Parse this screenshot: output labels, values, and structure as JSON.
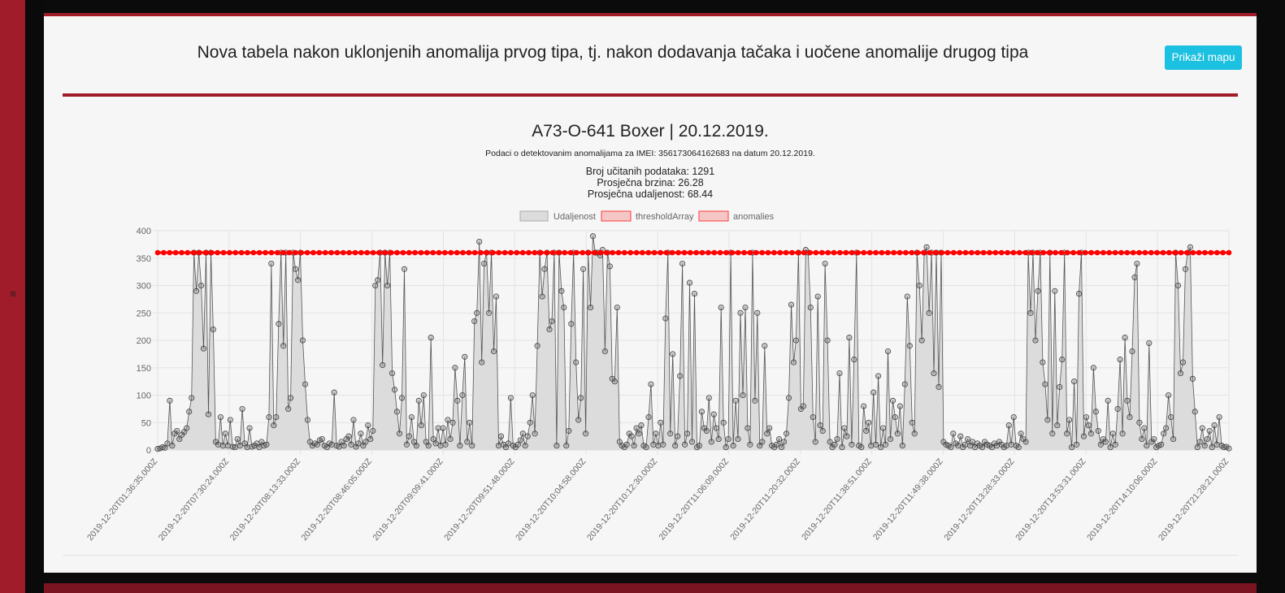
{
  "page": {
    "title": "Nova tabela nakon uklonjenih anomalija prvog tipa, tj. nakon dodavanja tačaka i uočene anomalije drugog tipa",
    "map_button": "Prikaži mapu"
  },
  "chart_data": {
    "type": "line",
    "title": "A73-O-641 Boxer | 20.12.2019.",
    "subtitle": "Podaci o detektovanim anomalijama za IMEI: 356173064162683 na datum 20.12.2019.",
    "stats": [
      "Broj učitanih podataka: 1291",
      "Prosječna brzina: 26.28",
      "Prosječna udaljenost: 68.44"
    ],
    "ylim": [
      0,
      400
    ],
    "y_ticks": [
      0,
      50,
      100,
      150,
      200,
      250,
      300,
      350,
      400
    ],
    "x_tick_labels": [
      "2019-12-20T01:36:35.000Z",
      "2019-12-20T07:30:24.000Z",
      "2019-12-20T08:13:33.000Z",
      "2019-12-20T08:46:05.000Z",
      "2019-12-20T09:09:41.000Z",
      "2019-12-20T09:51:48.000Z",
      "2019-12-20T10:04:58.000Z",
      "2019-12-20T10:12:30.000Z",
      "2019-12-20T11:06:09.000Z",
      "2019-12-20T11:20:32.000Z",
      "2019-12-20T11:38:51.000Z",
      "2019-12-20T11:49:38.000Z",
      "2019-12-20T13:28:33.000Z",
      "2019-12-20T13:53:31.000Z",
      "2019-12-20T14:10:06.000Z",
      "2019-12-20T21:28:21.000Z"
    ],
    "legend_position": "top",
    "grid": true,
    "series": [
      {
        "name": "Udaljenost",
        "color": "#555555",
        "fill": "#dcdcdc",
        "values": [
          2,
          3,
          5,
          4,
          12,
          90,
          8,
          30,
          35,
          20,
          28,
          33,
          40,
          70,
          95,
          360,
          290,
          360,
          300,
          185,
          360,
          65,
          360,
          220,
          15,
          10,
          60,
          8,
          30,
          8,
          55,
          6,
          5,
          20,
          8,
          75,
          12,
          5,
          40,
          6,
          8,
          12,
          5,
          15,
          8,
          10,
          60,
          340,
          45,
          60,
          230,
          360,
          190,
          360,
          75,
          95,
          360,
          330,
          310,
          360,
          200,
          120,
          55,
          15,
          8,
          12,
          10,
          18,
          20,
          8,
          5,
          12,
          10,
          105,
          8,
          6,
          15,
          8,
          20,
          25,
          10,
          55,
          6,
          12,
          30,
          8,
          15,
          45,
          20,
          35,
          300,
          310,
          360,
          155,
          360,
          300,
          360,
          140,
          110,
          70,
          30,
          95,
          330,
          10,
          25,
          60,
          15,
          8,
          90,
          45,
          100,
          15,
          8,
          205,
          20,
          12,
          40,
          8,
          40,
          10,
          55,
          20,
          50,
          150,
          90,
          8,
          100,
          170,
          15,
          50,
          8,
          235,
          250,
          380,
          160,
          340,
          360,
          250,
          360,
          180,
          280,
          8,
          25,
          10,
          5,
          12,
          95,
          8,
          5,
          10,
          18,
          30,
          8,
          25,
          50,
          100,
          30,
          190,
          360,
          280,
          330,
          360,
          220,
          235,
          360,
          8,
          360,
          290,
          260,
          8,
          35,
          230,
          360,
          160,
          55,
          95,
          330,
          30,
          360,
          260,
          390,
          360,
          360,
          355,
          365,
          180,
          360,
          335,
          130,
          125,
          260,
          15,
          8,
          5,
          10,
          30,
          25,
          8,
          40,
          30,
          45,
          8,
          5,
          60,
          120,
          10,
          30,
          8,
          50,
          10,
          240,
          360,
          30,
          175,
          8,
          25,
          135,
          340,
          10,
          30,
          305,
          15,
          285,
          5,
          8,
          70,
          40,
          35,
          95,
          15,
          65,
          40,
          20,
          260,
          50,
          5,
          20,
          360,
          8,
          90,
          20,
          250,
          100,
          260,
          40,
          10,
          360,
          90,
          250,
          8,
          15,
          190,
          30,
          40,
          8,
          5,
          10,
          20,
          5,
          15,
          30,
          95,
          265,
          160,
          200,
          360,
          75,
          80,
          365,
          360,
          260,
          60,
          15,
          280,
          45,
          35,
          340,
          200,
          15,
          5,
          10,
          20,
          140,
          5,
          40,
          25,
          205,
          10,
          165,
          360,
          8,
          5,
          80,
          35,
          50,
          8,
          105,
          10,
          135,
          5,
          40,
          10,
          180,
          20,
          90,
          60,
          30,
          80,
          8,
          120,
          280,
          190,
          50,
          30,
          360,
          300,
          200,
          360,
          370,
          250,
          360,
          140,
          360,
          115,
          360,
          15,
          10,
          8,
          5,
          30,
          12,
          8,
          25,
          5,
          10,
          20,
          8,
          15,
          5,
          12,
          8,
          5,
          15,
          10,
          8,
          5,
          12,
          8,
          15,
          10,
          5,
          8,
          45,
          10,
          60,
          8,
          5,
          30,
          20,
          15,
          360,
          250,
          360,
          200,
          290,
          360,
          160,
          120,
          55,
          360,
          30,
          290,
          45,
          115,
          165,
          360,
          30,
          55,
          5,
          125,
          10,
          285,
          360,
          25,
          60,
          45,
          30,
          150,
          70,
          35,
          10,
          20,
          15,
          90,
          5,
          30,
          10,
          75,
          165,
          30,
          205,
          90,
          60,
          180,
          315,
          340,
          50,
          20,
          40,
          8,
          195,
          15,
          20,
          5,
          8,
          10,
          30,
          40,
          100,
          60,
          20,
          360,
          300,
          140,
          160,
          330,
          360,
          370,
          130,
          70,
          5,
          15,
          40,
          8,
          20,
          35,
          5,
          45,
          10,
          60,
          8,
          5,
          6,
          3
        ]
      },
      {
        "name": "thresholdArray",
        "color": "#ff0000",
        "fill": "#f5c6c6",
        "values": [
          360
        ]
      },
      {
        "name": "anomalies",
        "color": "#ff0000",
        "fill": "#f5c6c6",
        "values": []
      }
    ]
  }
}
